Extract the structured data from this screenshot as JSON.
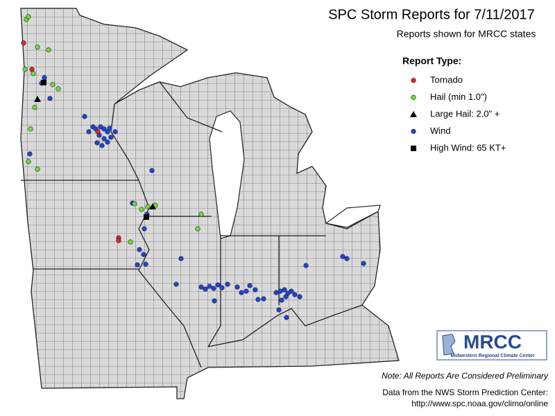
{
  "header": {
    "title": "SPC Storm Reports for 7/11/2017",
    "subtitle": "Reports shown for MRCC states"
  },
  "legend": {
    "title": "Report Type:",
    "items": [
      "Tornado",
      "Hail (min 1.0\")",
      "Large Hail: 2.0\" +",
      "Wind",
      "High Wind: 65 KT+"
    ]
  },
  "logo": {
    "acronym": "MRCC",
    "name": "Midwestern Regional Climate Center"
  },
  "note": "Note: All Reports Are Considered Preliminary",
  "source": {
    "line1": "Data from the NWS Storm Prediction Center:",
    "url": "http://www.spc.noaa.gov/climo/online"
  }
}
